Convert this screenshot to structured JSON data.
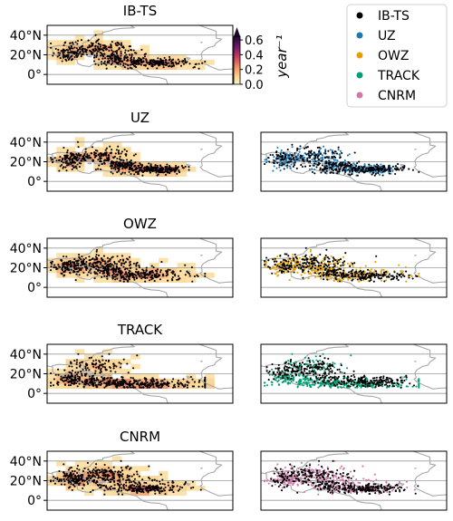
{
  "chart_data": {
    "type": "scatter",
    "description_kind": "tropical cyclone genesis point maps with density shading",
    "lat_ticks": [
      "40°N",
      "20°N",
      "0°"
    ],
    "lat_tick_values": [
      40,
      20,
      0
    ],
    "lat_range": [
      -10,
      50
    ],
    "lon_range": [
      -100,
      0
    ],
    "panels": [
      {
        "title": "IB-TS",
        "left_density": true,
        "right_overlay": null
      },
      {
        "title": "UZ",
        "left_density": true,
        "right_overlay": "UZ"
      },
      {
        "title": "OWZ",
        "left_density": true,
        "right_overlay": "OWZ"
      },
      {
        "title": "TRACK",
        "left_density": true,
        "right_overlay": "TRACK"
      },
      {
        "title": "CNRM",
        "left_density": true,
        "right_overlay": "CNRM"
      }
    ],
    "colorbar": {
      "label": "year⁻¹",
      "ticks": [
        "0.6",
        "0.4",
        "0.2",
        "0.0"
      ],
      "tick_values": [
        0.6,
        0.4,
        0.2,
        0.0
      ],
      "range": [
        0.0,
        0.65
      ],
      "extend": "max",
      "colormap": [
        "#fbf7c4",
        "#fbd08c",
        "#f49a63",
        "#d9555e",
        "#a3286b",
        "#5d1464",
        "#1a0a28"
      ]
    },
    "legend": {
      "placement": "top-right",
      "entries": [
        {
          "label": "IB-TS",
          "color": "#000000"
        },
        {
          "label": "UZ",
          "color": "#1f77b4"
        },
        {
          "label": "OWZ",
          "color": "#e69f00"
        },
        {
          "label": "TRACK",
          "color": "#009e73"
        },
        {
          "label": "CNRM",
          "color": "#cc79a7"
        }
      ]
    },
    "grid": true
  }
}
